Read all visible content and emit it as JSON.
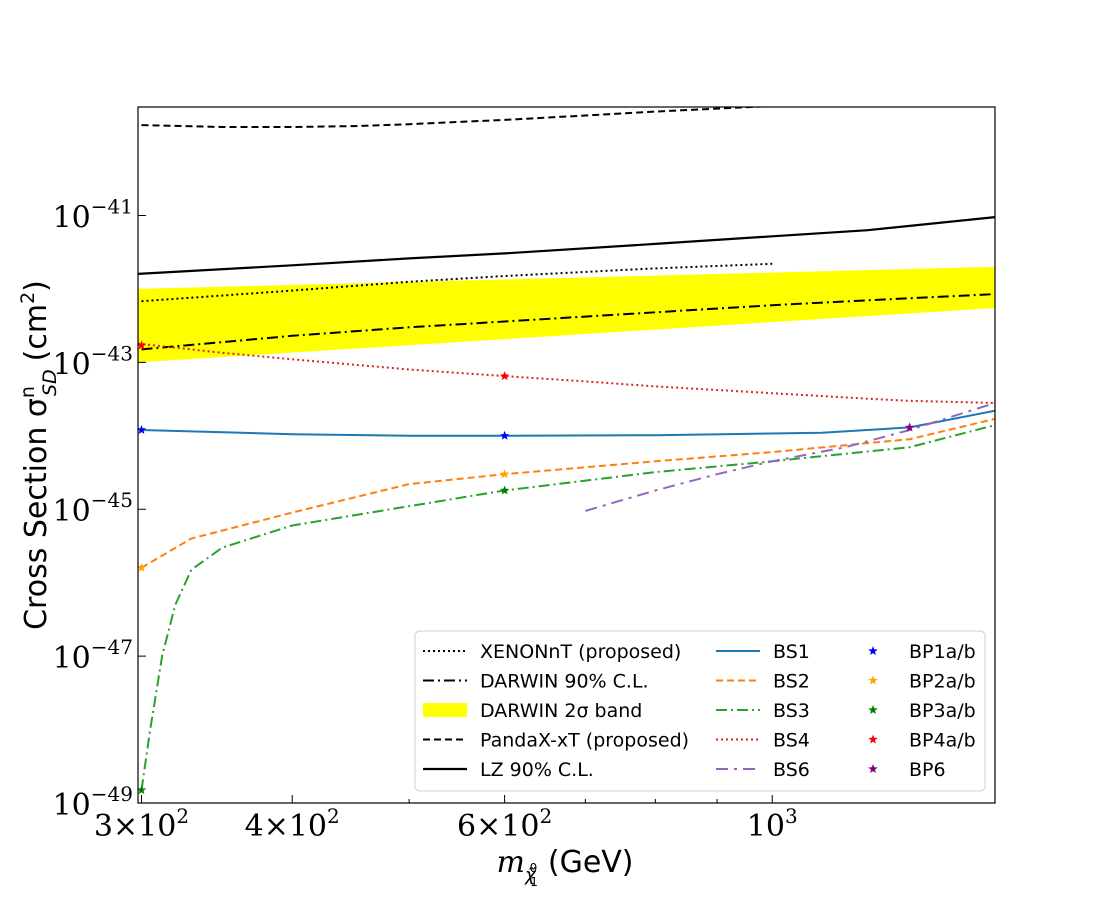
{
  "chart_data": {
    "type": "line",
    "xlabel": "m",
    "xlabel_sub": "χ̃",
    "xlabel_sub_sup": "0",
    "xlabel_sub_sub": "1",
    "xlabel_unit": "(GeV)",
    "ylabel": "Cross Section σ",
    "ylabel_sup": "n",
    "ylabel_sub": "SD",
    "ylabel_unit_pre": "(cm",
    "ylabel_unit_sup": "2",
    "ylabel_unit_post": ")",
    "x_scale": "log",
    "y_scale": "log",
    "xlim": [
      298,
      1530
    ],
    "ylim": [
      1e-49,
      3e-40
    ],
    "grid": false,
    "legend_position": "bottom-right",
    "x_ticks": [
      {
        "value": 300,
        "mant": "3",
        "exp": "2"
      },
      {
        "value": 400,
        "mant": "4",
        "exp": "2"
      },
      {
        "value": 600,
        "mant": "6",
        "exp": "2"
      },
      {
        "value": 1000,
        "mant": "",
        "exp": "3"
      }
    ],
    "x_minor_ticks": [
      500,
      700,
      800,
      900
    ],
    "y_ticks": [
      {
        "value": 1e-41,
        "exp": "−41"
      },
      {
        "value": 1e-43,
        "exp": "−43"
      },
      {
        "value": 1e-45,
        "exp": "−45"
      },
      {
        "value": 1e-47,
        "exp": "−47"
      },
      {
        "value": 1e-49,
        "exp": "−49"
      }
    ],
    "band": {
      "name": "DARWIN 2σ band",
      "color": "#ffff00",
      "x": [
        298,
        1530
      ],
      "y_low": [
        1e-43,
        5.5e-43
      ],
      "y_high": [
        1e-42,
        2e-42
      ]
    },
    "series": [
      {
        "name": "XENONnT (proposed)",
        "color": "#000000",
        "style": "dotted",
        "width": 2,
        "x": [
          300,
          400,
          500,
          600,
          800,
          1000
        ],
        "y": [
          6.8e-43,
          9.5e-43,
          1.25e-42,
          1.5e-42,
          1.9e-42,
          2.2e-42
        ]
      },
      {
        "name": "DARWIN 90% C.L.",
        "color": "#000000",
        "style": "dashdot",
        "width": 2,
        "x": [
          300,
          400,
          500,
          600,
          800,
          1000,
          1200,
          1530
        ],
        "y": [
          1.5e-43,
          2.3e-43,
          3e-43,
          3.6e-43,
          4.8e-43,
          6e-43,
          7e-43,
          8.5e-43
        ]
      },
      {
        "name": "PandaX-xT (proposed)",
        "color": "#000000",
        "style": "dashed",
        "width": 2,
        "x": [
          300,
          350,
          400,
          450,
          500,
          550,
          600,
          700,
          800,
          900,
          1000
        ],
        "y": [
          1.7e-40,
          1.6e-40,
          1.6e-40,
          1.65e-40,
          1.75e-40,
          1.88e-40,
          2e-40,
          2.3e-40,
          2.6e-40,
          2.85e-40,
          3.1e-40
        ]
      },
      {
        "name": "LZ 90% C.L.",
        "color": "#000000",
        "style": "solid",
        "width": 2.2,
        "x": [
          298,
          400,
          500,
          600,
          800,
          1000,
          1200,
          1530
        ],
        "y": [
          1.6e-42,
          2.1e-42,
          2.6e-42,
          3.05e-42,
          4.1e-42,
          5.2e-42,
          6.3e-42,
          9.5e-42
        ]
      },
      {
        "name": "BS1",
        "color": "#1f77b4",
        "style": "solid",
        "width": 2,
        "x": [
          300,
          400,
          500,
          600,
          800,
          1100,
          1300,
          1530
        ],
        "y": [
          1.2e-44,
          1.05e-44,
          1e-44,
          1e-44,
          1.02e-44,
          1.1e-44,
          1.3e-44,
          2.2e-44
        ]
      },
      {
        "name": "BS2",
        "color": "#ff7f0e",
        "style": "dashed",
        "width": 2,
        "x": [
          300,
          330,
          400,
          500,
          600,
          800,
          1000,
          1300,
          1530
        ],
        "y": [
          1.6e-46,
          4e-46,
          9e-46,
          2.2e-45,
          3e-45,
          4.5e-45,
          6e-45,
          9e-45,
          1.7e-44
        ]
      },
      {
        "name": "BS3",
        "color": "#2ca02c",
        "style": "dashdot",
        "width": 2,
        "x": [
          300,
          305,
          312,
          320,
          330,
          350,
          400,
          500,
          600,
          800,
          1000,
          1300,
          1530
        ],
        "y": [
          1.5e-49,
          1e-48,
          1e-47,
          5e-47,
          1.5e-46,
          3e-46,
          6e-46,
          1.1e-45,
          1.8e-45,
          3.2e-45,
          4.5e-45,
          7e-45,
          1.4e-44
        ]
      },
      {
        "name": "BS4",
        "color": "#d62728",
        "style": "dotted",
        "width": 2,
        "x": [
          298,
          350,
          400,
          500,
          600,
          700,
          800,
          900,
          1000,
          1200,
          1300,
          1530
        ],
        "y": [
          1.8e-43,
          1.35e-43,
          1.1e-43,
          8e-44,
          6.5e-44,
          5.5e-44,
          4.7e-44,
          4.2e-44,
          3.8e-44,
          3.2e-44,
          3e-44,
          2.8e-44
        ]
      },
      {
        "name": "BS6",
        "color": "#9467bd",
        "style": "dashdot2",
        "width": 2,
        "x": [
          700,
          800,
          900,
          1000,
          1150,
          1300,
          1530
        ],
        "y": [
          9.5e-46,
          1.8e-45,
          3e-45,
          4.5e-45,
          7e-45,
          1.2e-44,
          2.8e-44
        ]
      }
    ],
    "points": [
      {
        "name": "BP1a/b",
        "color": "#0000ff",
        "x": [
          300,
          600
        ],
        "y": [
          1.2e-44,
          1e-44
        ]
      },
      {
        "name": "BP2a/b",
        "color": "#ffa500",
        "x": [
          300,
          600
        ],
        "y": [
          1.6e-46,
          3e-45
        ]
      },
      {
        "name": "BP3a/b",
        "color": "#008000",
        "x": [
          300,
          600
        ],
        "y": [
          1.5e-49,
          1.8e-45
        ]
      },
      {
        "name": "BP4a/b",
        "color": "#ff0000",
        "x": [
          300,
          600
        ],
        "y": [
          1.7e-43,
          6.5e-44
        ]
      },
      {
        "name": "BP6",
        "color": "#800080",
        "x": [
          1300
        ],
        "y": [
          1.3e-44
        ]
      }
    ]
  }
}
